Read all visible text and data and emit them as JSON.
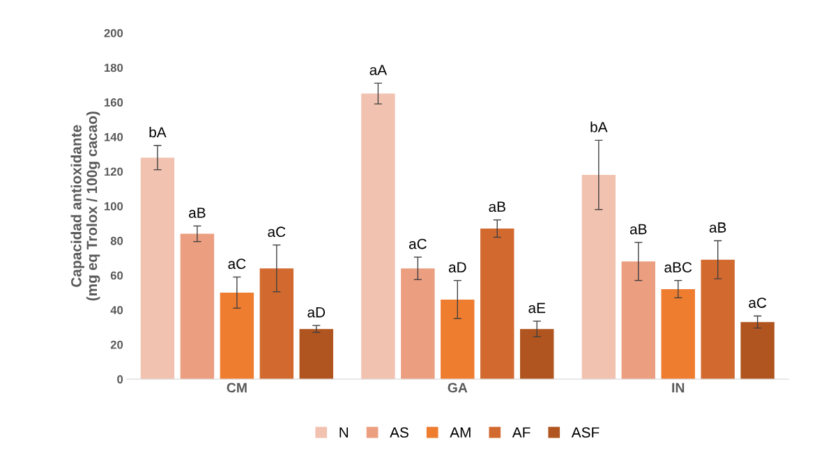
{
  "chart_data": {
    "type": "bar",
    "ylabel": "Capacidad antioxidante\n(mg eq Trolox / 100g cacao)",
    "categories": [
      "CM",
      "GA",
      "IN"
    ],
    "series": [
      {
        "name": "N",
        "color": "#f2c2b0",
        "values": [
          128,
          165,
          118
        ],
        "errors": [
          7,
          6,
          20
        ],
        "value_labels": [
          "bA",
          "aA",
          "bA"
        ]
      },
      {
        "name": "AS",
        "color": "#eb9e80",
        "values": [
          84,
          64,
          68
        ],
        "errors": [
          4.5,
          6.5,
          11
        ],
        "value_labels": [
          "aB",
          "aC",
          "aB"
        ]
      },
      {
        "name": "AM",
        "color": "#ef7d30",
        "values": [
          50,
          46,
          52
        ],
        "errors": [
          9,
          11,
          5
        ],
        "value_labels": [
          "aC",
          "aD",
          "aBC"
        ]
      },
      {
        "name": "AF",
        "color": "#d26a30",
        "values": [
          64,
          87,
          69
        ],
        "errors": [
          13.5,
          5,
          11
        ],
        "value_labels": [
          "aC",
          "aB",
          "aB"
        ]
      },
      {
        "name": "ASF",
        "color": "#b0551f",
        "values": [
          29,
          29,
          33
        ],
        "errors": [
          2,
          4.5,
          3.5
        ],
        "value_labels": [
          "aD",
          "aE",
          "aC"
        ]
      }
    ],
    "ylim": [
      0,
      200
    ],
    "yticks": [
      0,
      20,
      40,
      60,
      80,
      100,
      120,
      140,
      160,
      180,
      200
    ],
    "grid": false,
    "legend": "bottom"
  }
}
